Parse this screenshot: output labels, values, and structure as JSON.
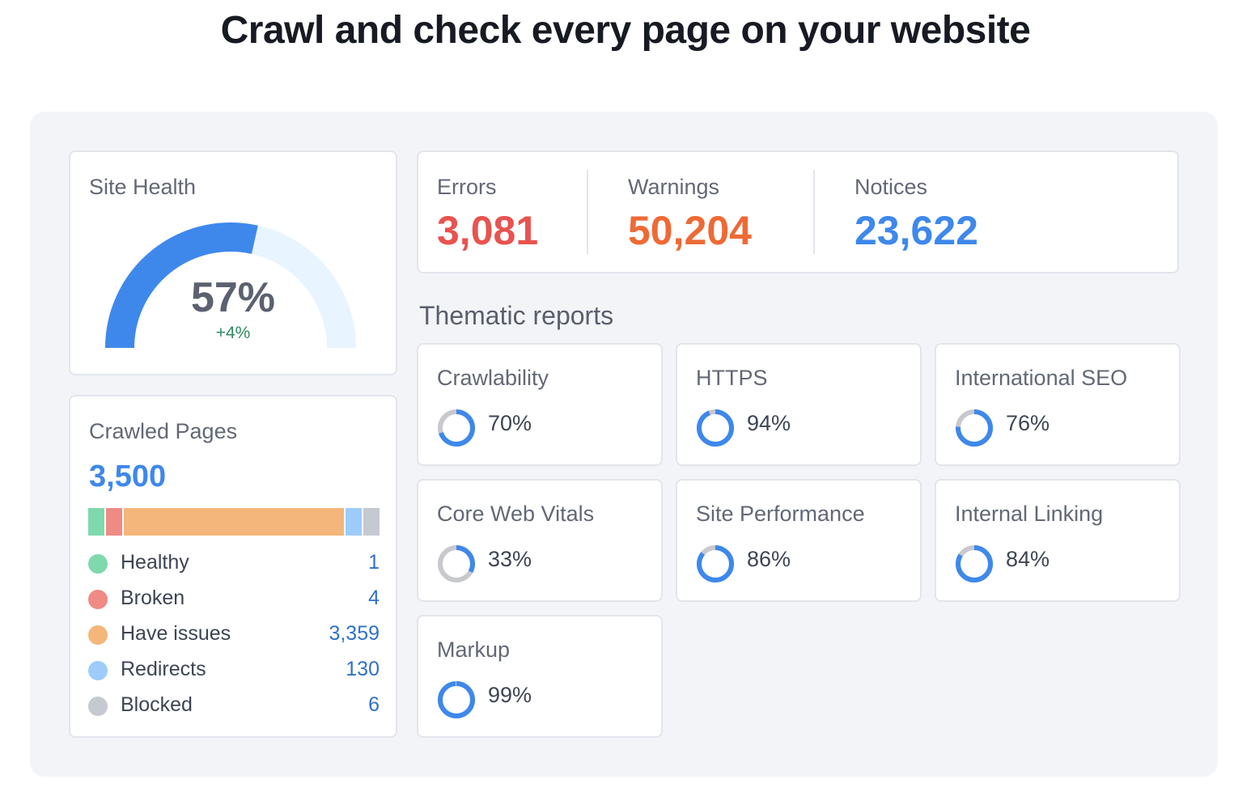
{
  "headline": "Crawl and check every page on your website",
  "colors": {
    "blue": "#3e88ec",
    "light_blue": "#e8f4ff",
    "error_red": "#e8534f",
    "warning_orange": "#ee6a35",
    "notice_blue": "#3e88ec",
    "ring_grey": "#c8c9cd"
  },
  "site_health": {
    "title": "Site Health",
    "value": "57%",
    "percent": 57,
    "delta": "+4%"
  },
  "crawled_pages": {
    "title": "Crawled Pages",
    "total": "3,500",
    "items": [
      {
        "label": "Healthy",
        "value": "1",
        "color": "#7fd9ad"
      },
      {
        "label": "Broken",
        "value": "4",
        "color": "#ef8a85"
      },
      {
        "label": "Have issues",
        "value": "3,359",
        "color": "#f4b67a"
      },
      {
        "label": "Redirects",
        "value": "130",
        "color": "#9dccfb"
      },
      {
        "label": "Blocked",
        "value": "6",
        "color": "#c6c9d0"
      }
    ]
  },
  "issues": {
    "errors": {
      "label": "Errors",
      "value": "3,081"
    },
    "warnings": {
      "label": "Warnings",
      "value": "50,204"
    },
    "notices": {
      "label": "Notices",
      "value": "23,622"
    }
  },
  "thematic_reports": {
    "title": "Thematic reports",
    "items": [
      {
        "label": "Crawlability",
        "value": "70%",
        "percent": 70
      },
      {
        "label": "HTTPS",
        "value": "94%",
        "percent": 94
      },
      {
        "label": "International SEO",
        "value": "76%",
        "percent": 76
      },
      {
        "label": "Core Web Vitals",
        "value": "33%",
        "percent": 33
      },
      {
        "label": "Site Performance",
        "value": "86%",
        "percent": 86
      },
      {
        "label": "Internal Linking",
        "value": "84%",
        "percent": 84
      },
      {
        "label": "Markup",
        "value": "99%",
        "percent": 99
      }
    ]
  }
}
